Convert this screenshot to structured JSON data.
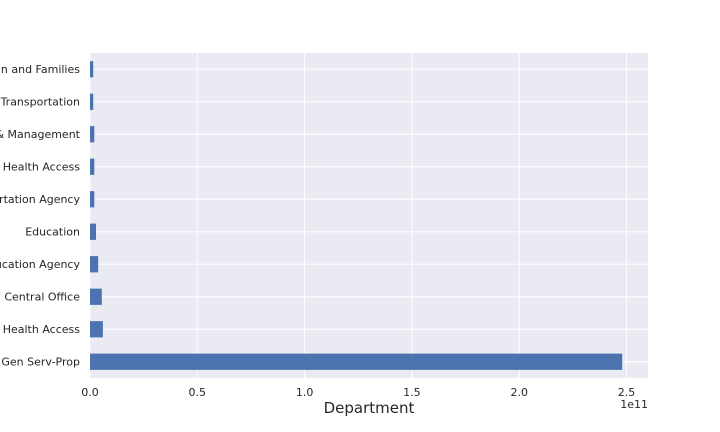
{
  "chart_data": {
    "type": "bar",
    "orientation": "horizontal",
    "title": "",
    "xlabel": "Department",
    "ylabel": "",
    "x_offset_label": "1e11",
    "x_scale": 100000000000,
    "xlim": [
      0,
      2.6
    ],
    "xticks": [
      0.0,
      0.5,
      1.0,
      1.5,
      2.0,
      2.5
    ],
    "xtick_labels": [
      "0.0",
      "0.5",
      "1.0",
      "1.5",
      "2.0",
      "2.5"
    ],
    "grid": true,
    "bar_color": "#4c72b0",
    "plot_background": "#eaeaf2",
    "categories": [
      "Gen Serv-Prop",
      "Health Access",
      "Central Office",
      "ucation Agency",
      "Education",
      "rtation Agency",
      "Health Access",
      "& Management",
      "Transportation",
      "n and Families"
    ],
    "values": [
      2.48,
      0.06,
      0.055,
      0.038,
      0.028,
      0.02,
      0.02,
      0.02,
      0.015,
      0.015
    ]
  }
}
